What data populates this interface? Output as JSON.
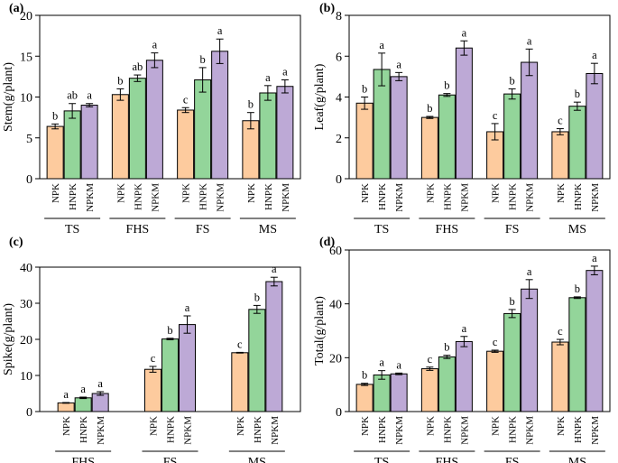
{
  "colors": {
    "NPK": "#FDCB9E",
    "HNPK": "#93D59A",
    "NPKM": "#BDA9D6",
    "outline": "#000000"
  },
  "chart_data": [
    {
      "type": "bar",
      "panel": "(a)",
      "ylabel": "Stem(g/plant)",
      "ylim": [
        0,
        20
      ],
      "yticks": [
        0,
        5,
        10,
        15,
        20
      ],
      "groups": [
        "TS",
        "FHS",
        "FS",
        "MS"
      ],
      "treatments": [
        "NPK",
        "HNPK",
        "NPKM"
      ],
      "values": [
        [
          6.4,
          8.3,
          9.0
        ],
        [
          10.3,
          12.3,
          14.5
        ],
        [
          8.4,
          12.1,
          15.6
        ],
        [
          7.1,
          10.5,
          11.3
        ]
      ],
      "errors": [
        [
          0.3,
          0.9,
          0.2
        ],
        [
          0.7,
          0.4,
          0.9
        ],
        [
          0.3,
          1.5,
          1.5
        ],
        [
          1.0,
          0.9,
          0.8
        ]
      ],
      "letters": [
        [
          "b",
          "ab",
          "a"
        ],
        [
          "b",
          "ab",
          "a"
        ],
        [
          "c",
          "b",
          "a"
        ],
        [
          "b",
          "a",
          "a"
        ]
      ]
    },
    {
      "type": "bar",
      "panel": "(b)",
      "ylabel": "Leaf(g/plant)",
      "ylim": [
        0,
        8
      ],
      "yticks": [
        0,
        2,
        4,
        6,
        8
      ],
      "groups": [
        "TS",
        "FHS",
        "FS",
        "MS"
      ],
      "treatments": [
        "NPK",
        "HNPK",
        "NPKM"
      ],
      "values": [
        [
          3.7,
          5.35,
          5.0
        ],
        [
          3.0,
          4.1,
          6.4
        ],
        [
          2.3,
          4.15,
          5.7
        ],
        [
          2.3,
          3.55,
          5.15
        ]
      ],
      "errors": [
        [
          0.3,
          0.8,
          0.2
        ],
        [
          0.05,
          0.07,
          0.35
        ],
        [
          0.4,
          0.25,
          0.65
        ],
        [
          0.15,
          0.2,
          0.5
        ]
      ],
      "letters": [
        [
          "b",
          "a",
          "a"
        ],
        [
          "b",
          "b",
          "a"
        ],
        [
          "c",
          "b",
          "a"
        ],
        [
          "c",
          "b",
          "a"
        ]
      ]
    },
    {
      "type": "bar",
      "panel": "(c)",
      "ylabel": "Spike(g/plant)",
      "ylim": [
        0,
        40
      ],
      "yticks": [
        0,
        10,
        20,
        30,
        40
      ],
      "groups": [
        "FHS",
        "FS",
        "MS"
      ],
      "treatments": [
        "NPK",
        "HNPK",
        "NPKM"
      ],
      "values": [
        [
          2.4,
          3.8,
          5.0
        ],
        [
          11.7,
          20.1,
          24.1
        ],
        [
          16.3,
          28.3,
          36.0
        ]
      ],
      "errors": [
        [
          0.1,
          0.2,
          0.5
        ],
        [
          0.8,
          0.2,
          2.4
        ],
        [
          0.1,
          1.1,
          1.2
        ]
      ],
      "letters": [
        [
          "a",
          "a",
          "a"
        ],
        [
          "c",
          "b",
          "a"
        ],
        [
          "c",
          "b",
          "a"
        ]
      ]
    },
    {
      "type": "bar",
      "panel": "(d)",
      "ylabel": "Total(g/plant)",
      "ylim": [
        0,
        60
      ],
      "yticks": [
        0,
        20,
        40,
        60
      ],
      "groups": [
        "TS",
        "FHS",
        "FS",
        "MS"
      ],
      "treatments": [
        "NPK",
        "HNPK",
        "NPKM"
      ],
      "values": [
        [
          10.1,
          13.6,
          14.0
        ],
        [
          15.9,
          20.3,
          26.0
        ],
        [
          22.4,
          36.4,
          45.5
        ],
        [
          25.8,
          42.3,
          52.4
        ]
      ],
      "errors": [
        [
          0.4,
          1.6,
          0.3
        ],
        [
          0.6,
          0.6,
          1.9
        ],
        [
          0.4,
          1.5,
          3.5
        ],
        [
          1.0,
          0.3,
          1.6
        ]
      ],
      "letters": [
        [
          "b",
          "a",
          "a"
        ],
        [
          "c",
          "b",
          "a"
        ],
        [
          "c",
          "b",
          "a"
        ],
        [
          "c",
          "b",
          "a"
        ]
      ]
    }
  ]
}
